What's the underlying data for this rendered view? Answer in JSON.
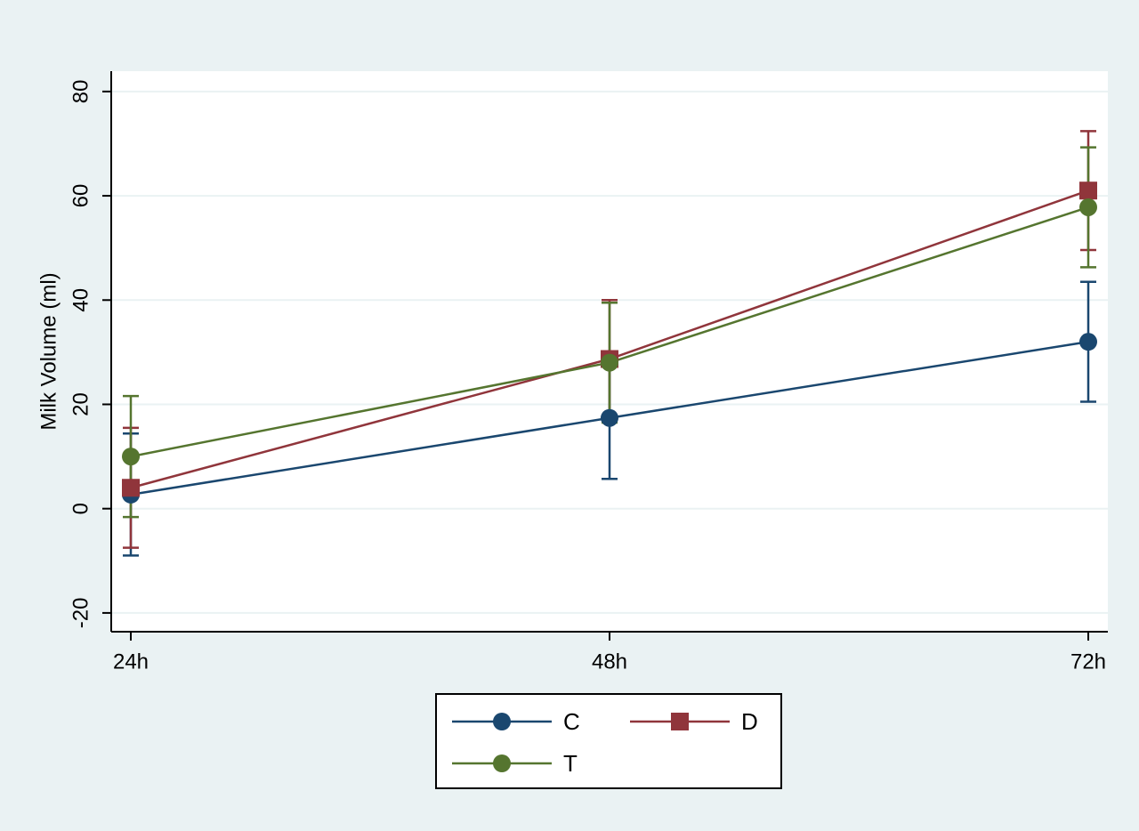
{
  "chart_data": {
    "type": "line",
    "y_label": "Milk Volume (ml)",
    "categories": [
      "24h",
      "48h",
      "72h"
    ],
    "series": [
      {
        "name": "C",
        "color": "#1a476f",
        "marker": "circle",
        "values": [
          2.7,
          17.4,
          32
        ],
        "errors": [
          11.7,
          11.7,
          11.5
        ]
      },
      {
        "name": "D",
        "color": "#90353b",
        "marker": "square",
        "values": [
          4,
          28.7,
          61
        ],
        "errors": [
          11.5,
          11.3,
          11.4
        ]
      },
      {
        "name": "T",
        "color": "#55752f",
        "marker": "circle",
        "values": [
          10,
          28,
          57.8
        ],
        "errors": [
          11.6,
          11.5,
          11.5
        ]
      }
    ],
    "ylim": [
      -23.6,
      83.9
    ],
    "yticks": [
      -20,
      0,
      20,
      40,
      60,
      80
    ],
    "grid": true,
    "legend": "bottom"
  }
}
